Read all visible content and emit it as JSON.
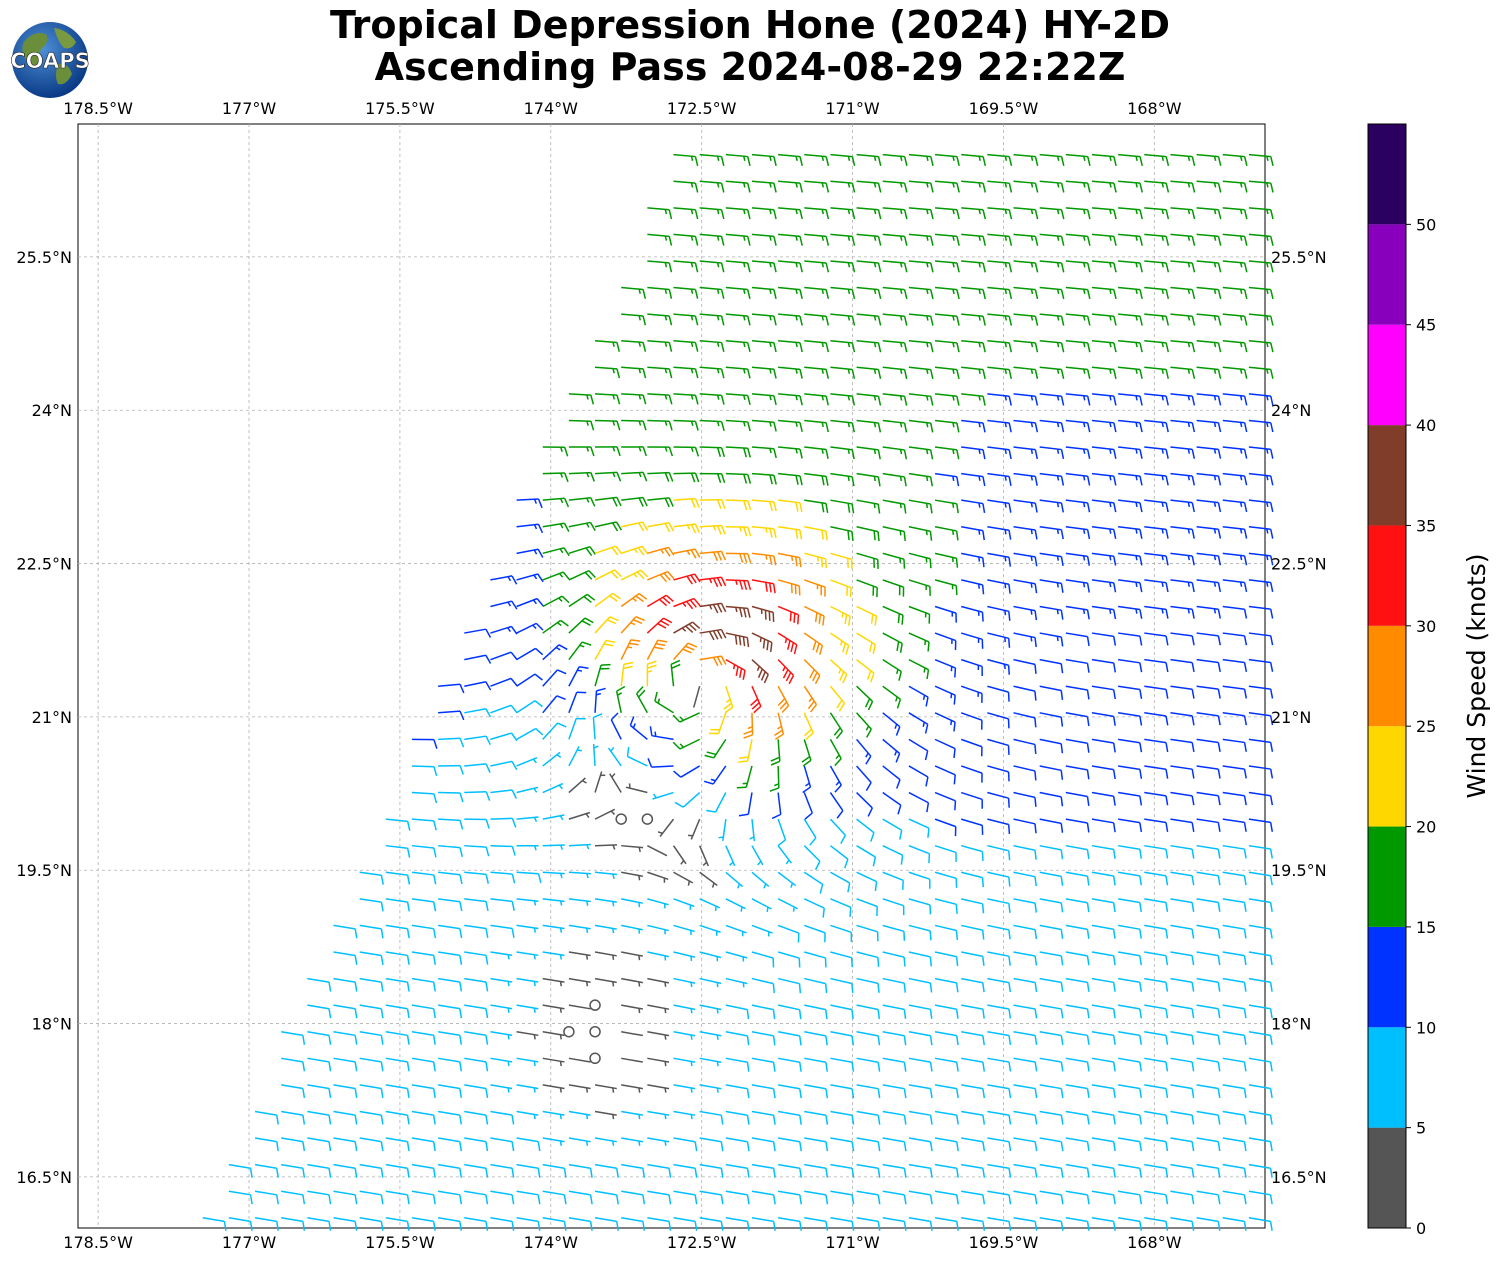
{
  "title": {
    "line1": "Tropical Depression Hone (2024) HY-2D",
    "line2": "Ascending Pass 2024-08-29 22:22Z"
  },
  "logo": {
    "text": "COAPS",
    "icon": "globe-icon"
  },
  "map": {
    "lon_range": [
      -178.7,
      -166.9
    ],
    "lat_range": [
      16.0,
      26.8
    ],
    "lon_ticks": [
      {
        "value": -178.5,
        "label": "178.5°W"
      },
      {
        "value": -177.0,
        "label": "177°W"
      },
      {
        "value": -175.5,
        "label": "175.5°W"
      },
      {
        "value": -174.0,
        "label": "174°W"
      },
      {
        "value": -172.5,
        "label": "172.5°W"
      },
      {
        "value": -171.0,
        "label": "171°W"
      },
      {
        "value": -169.5,
        "label": "169.5°W"
      },
      {
        "value": -168.0,
        "label": "168°W"
      }
    ],
    "lat_ticks": [
      {
        "value": 16.5,
        "label": "16.5°N"
      },
      {
        "value": 18.0,
        "label": "18°N"
      },
      {
        "value": 19.5,
        "label": "19.5°N"
      },
      {
        "value": 21.0,
        "label": "21°N"
      },
      {
        "value": 22.5,
        "label": "22.5°N"
      },
      {
        "value": 24.0,
        "label": "24°N"
      },
      {
        "value": 25.5,
        "label": "25.5°N"
      }
    ],
    "storm_center": {
      "lon": -172.5,
      "lat": 21.4
    },
    "swath_west_edge_deg_per_lat": 0.38
  },
  "colorbar": {
    "label": "Wind Speed (knots)",
    "ticks": [
      "0",
      "5",
      "10",
      "15",
      "20",
      "25",
      "30",
      "35",
      "40",
      "45",
      "50"
    ],
    "bins": [
      {
        "min": 0,
        "max": 5,
        "color": "#555555"
      },
      {
        "min": 5,
        "max": 10,
        "color": "#00bfff"
      },
      {
        "min": 10,
        "max": 15,
        "color": "#0033ff"
      },
      {
        "min": 15,
        "max": 20,
        "color": "#009900"
      },
      {
        "min": 20,
        "max": 25,
        "color": "#ffd700"
      },
      {
        "min": 25,
        "max": 30,
        "color": "#ff8c00"
      },
      {
        "min": 30,
        "max": 35,
        "color": "#ff1111"
      },
      {
        "min": 35,
        "max": 40,
        "color": "#803d2a"
      },
      {
        "min": 40,
        "max": 45,
        "color": "#ff00ff"
      },
      {
        "min": 45,
        "max": 50,
        "color": "#8800bb"
      },
      {
        "min": 50,
        "max": 55,
        "color": "#2a0060"
      }
    ],
    "max": 55
  }
}
